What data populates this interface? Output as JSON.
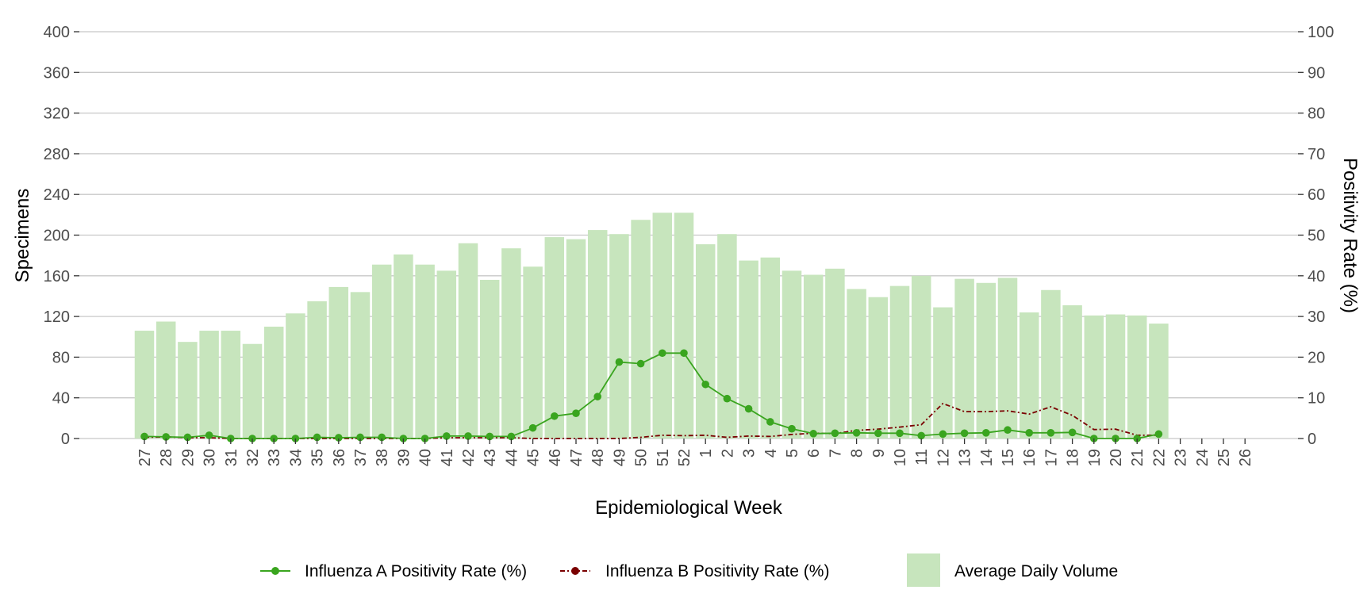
{
  "chart_data": {
    "type": "bar",
    "xlabel": "Epidemiological Week",
    "ylabel": "Specimens",
    "y2label": "Positivity Rate (%)",
    "ylim": [
      0,
      400
    ],
    "y2lim": [
      0,
      100
    ],
    "yticks": [
      "0",
      "40",
      "80",
      "120",
      "160",
      "200",
      "240",
      "280",
      "320",
      "360",
      "400"
    ],
    "y2ticks": [
      "0",
      "10",
      "20",
      "30",
      "40",
      "50",
      "60",
      "70",
      "80",
      "90",
      "100"
    ],
    "grid": true,
    "legend_position": "bottom",
    "categories": [
      "27",
      "28",
      "29",
      "30",
      "31",
      "32",
      "33",
      "34",
      "35",
      "36",
      "37",
      "38",
      "39",
      "40",
      "41",
      "42",
      "43",
      "44",
      "45",
      "46",
      "47",
      "48",
      "49",
      "50",
      "51",
      "52",
      "1",
      "2",
      "3",
      "4",
      "5",
      "6",
      "7",
      "8",
      "9",
      "10",
      "11",
      "12",
      "13",
      "14",
      "15",
      "16",
      "17",
      "18",
      "19",
      "20",
      "21",
      "22",
      "23",
      "24",
      "25",
      "26"
    ],
    "series": [
      {
        "name": "Average Daily Volume",
        "type": "bar",
        "axis": "left",
        "color": "#c7e5bd",
        "values": [
          106,
          115,
          95,
          106,
          106,
          93,
          110,
          123,
          135,
          149,
          144,
          171,
          181,
          171,
          165,
          192,
          156,
          187,
          169,
          198,
          196,
          205,
          201,
          215,
          222,
          222,
          191,
          201,
          175,
          178,
          165,
          161,
          167,
          147,
          139,
          150,
          160,
          129,
          157,
          153,
          158,
          124,
          146,
          131,
          121,
          122,
          121,
          113,
          null,
          null,
          null,
          null
        ]
      },
      {
        "name": "Influenza A Positivity Rate (%)",
        "type": "line",
        "axis": "right",
        "color": "#3aa51f",
        "line_style": "solid",
        "values": [
          0.5,
          0.4,
          0.3,
          0.8,
          0.0,
          0.0,
          0.0,
          0.0,
          0.3,
          0.2,
          0.3,
          0.3,
          0.0,
          0.0,
          0.6,
          0.6,
          0.5,
          0.5,
          2.6,
          5.5,
          6.2,
          10.3,
          18.8,
          18.4,
          21.0,
          21.0,
          13.3,
          9.8,
          7.3,
          4.1,
          2.4,
          1.2,
          1.3,
          1.4,
          1.3,
          1.3,
          0.7,
          1.1,
          1.3,
          1.4,
          2.1,
          1.4,
          1.4,
          1.5,
          0.0,
          0.0,
          0.0,
          1.1,
          null,
          null,
          null,
          null
        ]
      },
      {
        "name": "Influenza B Positivity Rate (%)",
        "type": "line",
        "axis": "right",
        "color": "#7a0000",
        "line_style": "dashdot",
        "values": [
          0.3,
          0.4,
          0.2,
          0.2,
          0.0,
          0.0,
          0.0,
          0.0,
          0.0,
          0.0,
          0.0,
          0.0,
          0.0,
          0.0,
          0.2,
          0.2,
          0.2,
          0.2,
          0.0,
          0.0,
          0.0,
          0.0,
          0.0,
          0.3,
          0.8,
          0.7,
          0.8,
          0.3,
          0.6,
          0.5,
          1.0,
          1.3,
          1.2,
          2.0,
          2.3,
          2.8,
          3.4,
          8.6,
          6.6,
          6.6,
          6.8,
          6.0,
          7.8,
          5.7,
          2.2,
          2.3,
          0.8,
          0.8,
          null,
          null,
          null,
          null
        ]
      }
    ]
  }
}
